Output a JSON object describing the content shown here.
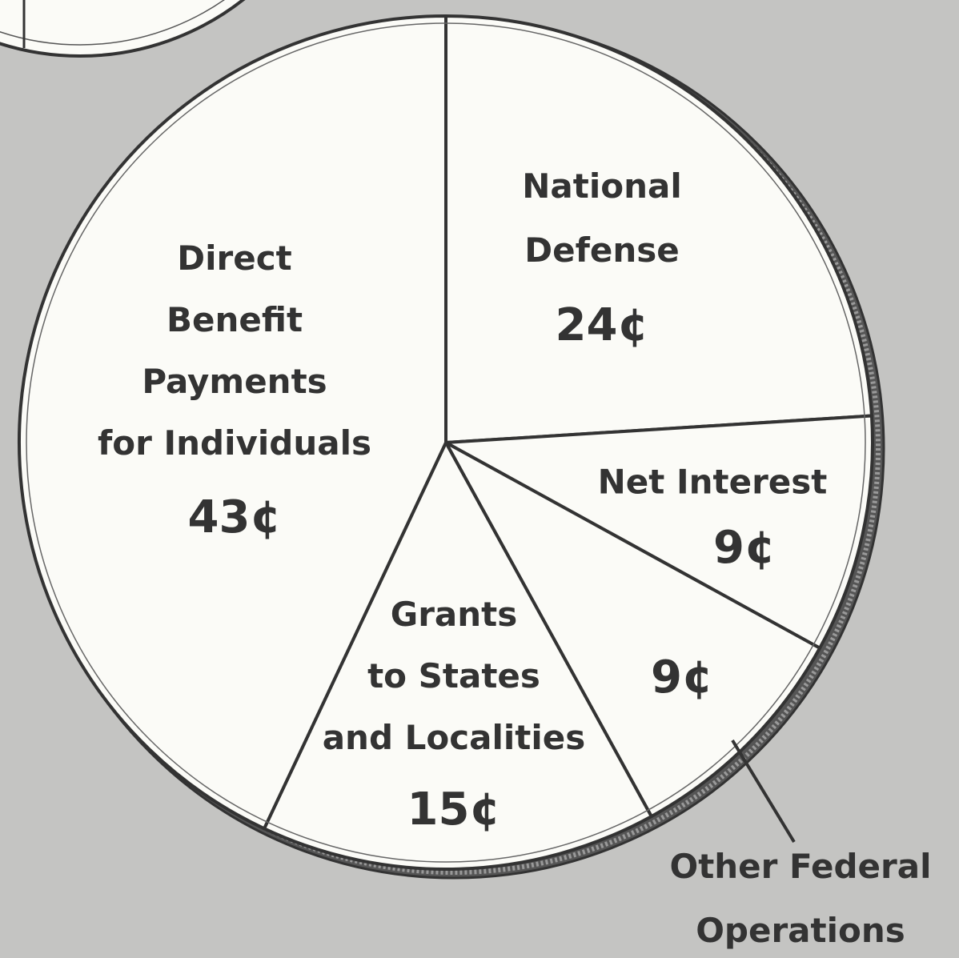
{
  "chart_data": {
    "type": "pie",
    "categories": [
      "National\nDefense",
      "Net Interest",
      "Other Federal\nOperations",
      "Grants\nto States\nand Localities",
      "Direct\nBenefit\nPayments\nfor Individuals"
    ],
    "values": [
      24,
      9,
      9,
      15,
      43
    ],
    "value_labels": [
      "24¢",
      "9¢",
      "9¢",
      "15¢",
      "43¢"
    ],
    "color": "#fbfbf7"
  }
}
